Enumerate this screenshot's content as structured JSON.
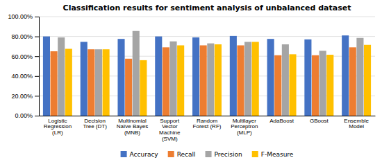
{
  "chart_data": {
    "type": "bar",
    "title": "Classification results for sentiment analysis of unbalanced dataset",
    "categories": [
      "Logistic\nRegression\n(LR)",
      "Decision\nTree (DT)",
      "Multinomial\nNaïve Bayes\n(MNB)",
      "Support\nVector\nMachine\n(SVM)",
      "Random\nForest (RF)",
      "Multilayer\nPerceptron\n(MLP)",
      "AdaBoost",
      "GBoost",
      "Ensemble\nModel"
    ],
    "series": [
      {
        "name": "Accuracy",
        "color": "#4472C4",
        "values": [
          0.8,
          0.745,
          0.775,
          0.8,
          0.79,
          0.805,
          0.775,
          0.77,
          0.81
        ]
      },
      {
        "name": "Recall",
        "color": "#ED7D31",
        "values": [
          0.65,
          0.67,
          0.575,
          0.69,
          0.71,
          0.71,
          0.61,
          0.61,
          0.69
        ]
      },
      {
        "name": "Precision",
        "color": "#A5A5A5",
        "values": [
          0.79,
          0.67,
          0.855,
          0.75,
          0.73,
          0.745,
          0.72,
          0.655,
          0.785
        ]
      },
      {
        "name": "F-Measure",
        "color": "#FFC000",
        "values": [
          0.675,
          0.67,
          0.56,
          0.71,
          0.72,
          0.745,
          0.62,
          0.615,
          0.715
        ]
      }
    ],
    "ylim": [
      0.0,
      1.0
    ],
    "yticks": [
      {
        "value": 0.0,
        "label": "0.00%"
      },
      {
        "value": 0.2,
        "label": "20.00%"
      },
      {
        "value": 0.4,
        "label": "40.00%"
      },
      {
        "value": 0.6,
        "label": "60.00%"
      },
      {
        "value": 0.8,
        "label": "80.00%"
      },
      {
        "value": 1.0,
        "label": "100.00%"
      }
    ],
    "grid": true,
    "legend": "bottom"
  }
}
